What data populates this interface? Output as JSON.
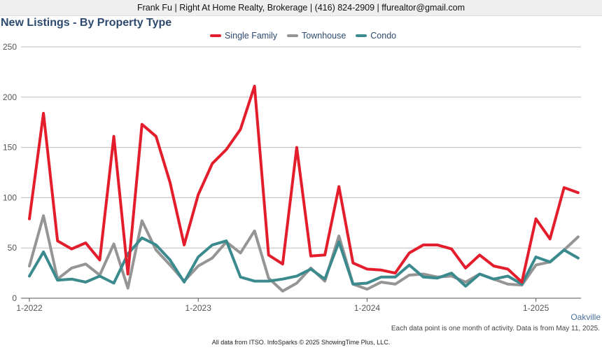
{
  "header": {
    "contact": "Frank Fu | Right At Home Realty, Brokerage | (416) 824-2909 | ffurealtor@gmail.com"
  },
  "footer": {
    "region": "Oakville",
    "note": "Each data point is one month of activity. Data is from May 11, 2025.",
    "source": "All data from ITSO. InfoSparks © 2025 ShowingTime Plus, LLC."
  },
  "chart_data": {
    "type": "line",
    "title": "New Listings - By Property Type",
    "xlabel": "",
    "ylabel": "",
    "ylim": [
      0,
      250
    ],
    "y_ticks": [
      0,
      50,
      100,
      150,
      200,
      250
    ],
    "x_tick_labels": [
      "1-2022",
      "1-2023",
      "1-2024",
      "1-2025"
    ],
    "x_tick_index": [
      0,
      12,
      24,
      36
    ],
    "x": [
      "2022-01",
      "2022-02",
      "2022-03",
      "2022-04",
      "2022-05",
      "2022-06",
      "2022-07",
      "2022-08",
      "2022-09",
      "2022-10",
      "2022-11",
      "2022-12",
      "2023-01",
      "2023-02",
      "2023-03",
      "2023-04",
      "2023-05",
      "2023-06",
      "2023-07",
      "2023-08",
      "2023-09",
      "2023-10",
      "2023-11",
      "2023-12",
      "2024-01",
      "2024-02",
      "2024-03",
      "2024-04",
      "2024-05",
      "2024-06",
      "2024-07",
      "2024-08",
      "2024-09",
      "2024-10",
      "2024-11",
      "2024-12",
      "2025-01",
      "2025-02",
      "2025-03",
      "2025-04"
    ],
    "grid": true,
    "legend": "top-center",
    "series": [
      {
        "name": "Single Family",
        "color": "#e31d2b",
        "values": [
          79,
          184,
          57,
          49,
          55,
          38,
          161,
          24,
          173,
          161,
          115,
          53,
          103,
          134,
          148,
          168,
          211,
          43,
          34,
          150,
          42,
          43,
          111,
          35,
          29,
          28,
          25,
          45,
          53,
          53,
          49,
          30,
          43,
          32,
          29,
          16,
          79,
          59,
          110,
          105
        ]
      },
      {
        "name": "Townhouse",
        "color": "#959595",
        "values": [
          32,
          82,
          19,
          30,
          34,
          23,
          54,
          10,
          77,
          48,
          33,
          17,
          32,
          40,
          56,
          45,
          67,
          20,
          7,
          15,
          30,
          17,
          62,
          14,
          9,
          16,
          14,
          23,
          24,
          21,
          22,
          16,
          24,
          19,
          14,
          13,
          33,
          36,
          48,
          61
        ]
      },
      {
        "name": "Condo",
        "color": "#3a8a8e",
        "values": [
          22,
          46,
          18,
          19,
          16,
          22,
          15,
          44,
          60,
          53,
          38,
          16,
          41,
          53,
          57,
          21,
          17,
          17,
          19,
          22,
          29,
          19,
          56,
          14,
          15,
          21,
          21,
          33,
          21,
          20,
          25,
          12,
          24,
          19,
          22,
          14,
          41,
          36,
          48,
          40
        ]
      }
    ]
  }
}
